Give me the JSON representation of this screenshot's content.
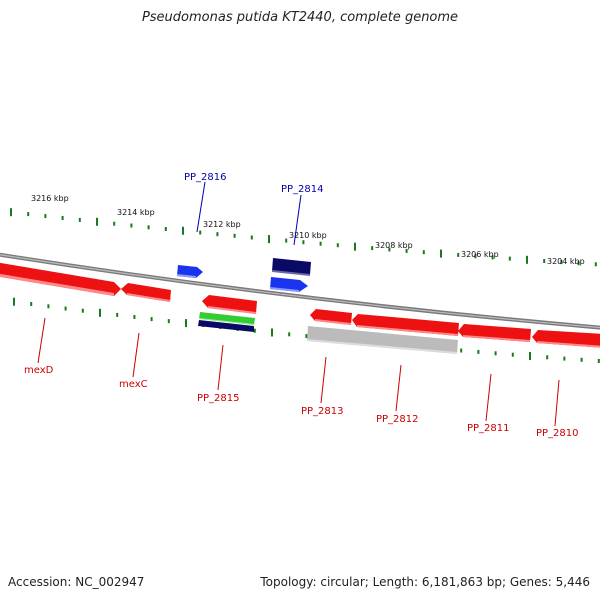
{
  "title": "Pseudomonas putida KT2440, complete genome",
  "footer": {
    "accession": "Accession: NC_002947",
    "summary": "Topology: circular; Length: 6,181,863 bp; Genes: 5,446"
  },
  "colors": {
    "backbone": "#8a8a8a",
    "tick": "#1a7a1a",
    "gene_red": "#ee1111",
    "gene_blue": "#1a33ee",
    "gene_navy": "#0a0a66",
    "gene_green": "#33cc33",
    "gene_gray": "#bbbbbb",
    "label_red": "#cc0000",
    "label_blue": "#0000aa"
  },
  "scale_labels": [
    "3216 kbp",
    "3214 kbp",
    "3212 kbp",
    "3210 kbp",
    "3208 kbp",
    "3206 kbp",
    "3204 kbp"
  ],
  "genes_above": [
    "PP_2816",
    "PP_2814"
  ],
  "genes_below": [
    "mexD",
    "mexC",
    "PP_2815",
    "PP_2813",
    "PP_2812",
    "PP_2811",
    "PP_2810"
  ]
}
